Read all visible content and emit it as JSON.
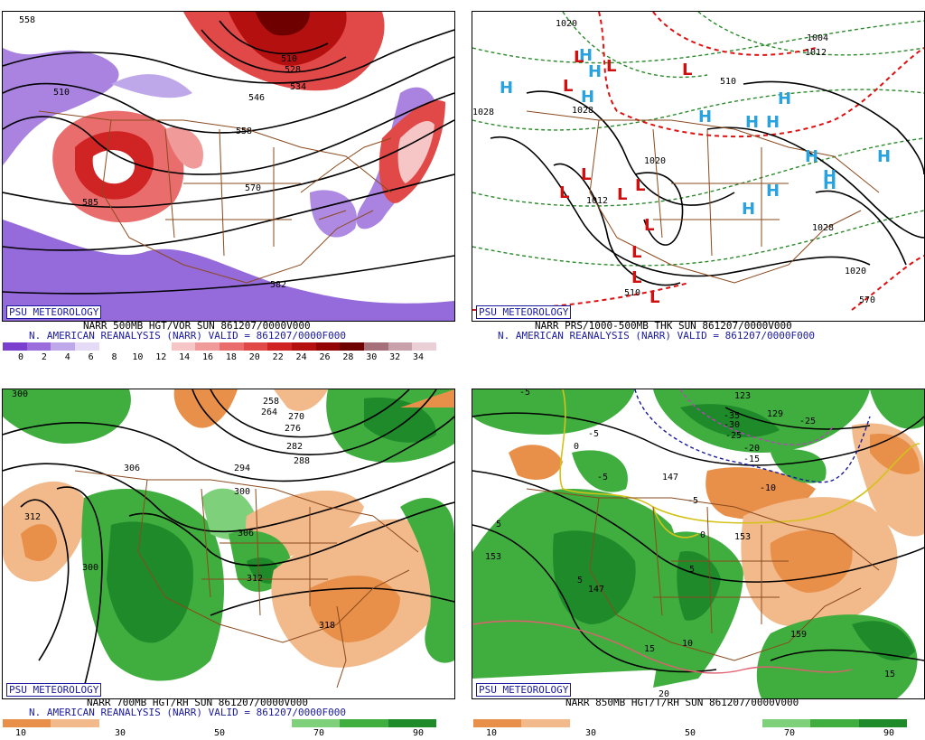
{
  "panels": [
    {
      "id": "tl",
      "badge": "PSU METEOROLOGY",
      "line1": "NARR 500MB HGT/VOR SUN 861207/0000V000",
      "line2": "N. AMERICAN REANALYSIS (NARR) VALID = 861207/0000F000",
      "contour_labels": [
        "510",
        "528",
        "534",
        "546",
        "558",
        "570",
        "582",
        "585",
        "558",
        "510"
      ],
      "colorbar": {
        "ticks": [
          "0",
          "2",
          "4",
          "6",
          "8",
          "10",
          "12",
          "14",
          "16",
          "18",
          "20",
          "22",
          "24",
          "26",
          "28",
          "30",
          "32",
          "34"
        ],
        "colors": [
          "#7b3fd0",
          "#9b6ddc",
          "#bfa8ea",
          "#e5dbf6",
          "#ffffff",
          "#ffffff",
          "#ffffff",
          "#f6c6c6",
          "#f19a9a",
          "#ea6d6d",
          "#e14848",
          "#d02424",
          "#b41010",
          "#930404",
          "#6e0000",
          "#a6707a",
          "#c9a1aa",
          "#ebcfd6"
        ]
      }
    },
    {
      "id": "tr",
      "badge": "PSU METEOROLOGY",
      "line1": "NARR PRS/1000-500MB THK SUN 861207/0000V000",
      "line2": "N. AMERICAN REANALYSIS (NARR) VALID = 861207/0000F000",
      "contour_labels": [
        "1020",
        "1004",
        "1012",
        "1028",
        "1028",
        "1012",
        "1020",
        "1028",
        "1020",
        "510",
        "510",
        "570"
      ],
      "highs": [
        "H",
        "H",
        "H",
        "H",
        "H",
        "H",
        "H",
        "H",
        "H",
        "H",
        "H",
        "H",
        "H",
        "H"
      ],
      "lows": [
        "L",
        "L",
        "L",
        "L",
        "L",
        "L",
        "L",
        "L",
        "L",
        "L",
        "L",
        "L"
      ]
    },
    {
      "id": "bl",
      "badge": "PSU METEOROLOGY",
      "line1": "NARR 700MB HGT/RH SUN 861207/0000V000",
      "line2": "N. AMERICAN REANALYSIS (NARR) VALID = 861207/0000F000",
      "contour_labels": [
        "300",
        "258",
        "264",
        "270",
        "276",
        "282",
        "288",
        "294",
        "300",
        "306",
        "312",
        "300",
        "312",
        "306",
        "318"
      ],
      "colorbar": {
        "ticks": [
          "10",
          "30",
          "50",
          "70",
          "90"
        ],
        "colors": [
          "#e8904a",
          "#f2b98a",
          "#ffffff",
          "#ffffff",
          "#ffffff",
          "#ffffff",
          "#7ed07a",
          "#3fae3f",
          "#1f8a2a"
        ]
      }
    },
    {
      "id": "br",
      "badge": "PSU METEOROLOGY",
      "line1": "NARR 850MB HGT/T/RH SUN 861207/0000V000",
      "contour_labels": [
        "123",
        "129",
        "153",
        "153",
        "147",
        "147",
        "159",
        "-35",
        "-30",
        "-25",
        "-25",
        "-20",
        "-15",
        "-10",
        "-5",
        "-5",
        "-5",
        "-5",
        "0",
        "0",
        "5",
        "5",
        "5",
        "10",
        "15",
        "15",
        "20"
      ],
      "colorbar": {
        "ticks": [
          "10",
          "30",
          "50",
          "70",
          "90"
        ],
        "colors": [
          "#e8904a",
          "#f2b98a",
          "#ffffff",
          "#ffffff",
          "#ffffff",
          "#ffffff",
          "#7ed07a",
          "#3fae3f",
          "#1f8a2a"
        ]
      }
    }
  ]
}
